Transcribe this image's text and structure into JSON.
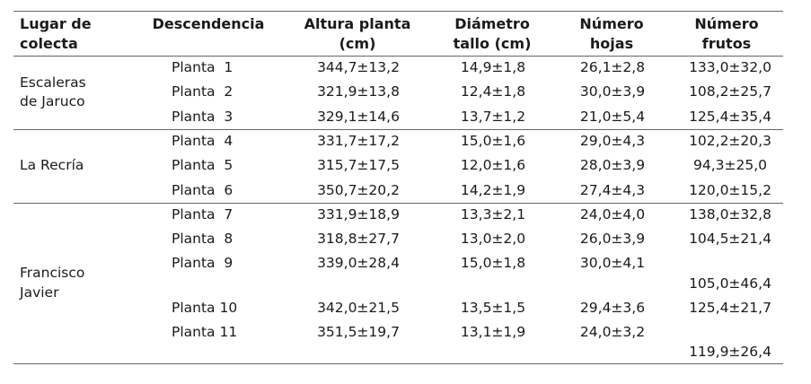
{
  "headers": {
    "lugar": [
      "Lugar de",
      "colecta"
    ],
    "descendencia": "Descendencia",
    "altura": [
      "Altura planta",
      "(cm)"
    ],
    "diametro": [
      "Diámetro",
      "tallo (cm)"
    ],
    "hojas": [
      "Número",
      "hojas"
    ],
    "frutos": [
      "Número",
      "frutos"
    ]
  },
  "groups": [
    {
      "lugar": [
        "Escaleras",
        "de Jaruco"
      ]
    },
    {
      "lugar": [
        "La Recría"
      ]
    },
    {
      "lugar": [
        "Francisco",
        "Javier"
      ]
    }
  ],
  "rows": [
    {
      "planta": "Planta  1",
      "altura": "344,7±13,2",
      "diametro": "14,9±1,8",
      "hojas": "26,1±2,8",
      "frutos": "133,0±32,0"
    },
    {
      "planta": "Planta  2",
      "altura": "321,9±13,8",
      "diametro": "12,4±1,8",
      "hojas": "30,0±3,9",
      "frutos": "108,2±25,7"
    },
    {
      "planta": "Planta  3",
      "altura": "329,1±14,6",
      "diametro": "13,7±1,2",
      "hojas": "21,0±5,4",
      "frutos": "125,4±35,4"
    },
    {
      "planta": "Planta  4",
      "altura": "331,7±17,2",
      "diametro": "15,0±1,6",
      "hojas": "29,0±4,3",
      "frutos": "102,2±20,3"
    },
    {
      "planta": "Planta  5",
      "altura": "315,7±17,5",
      "diametro": "12,0±1,6",
      "hojas": "28,0±3,9",
      "frutos": "94,3±25,0"
    },
    {
      "planta": "Planta  6",
      "altura": "350,7±20,2",
      "diametro": "14,2±1,9",
      "hojas": "27,4±4,3",
      "frutos": "120,0±15,2"
    },
    {
      "planta": "Planta  7",
      "altura": "331,9±18,9",
      "diametro": "13,3±2,1",
      "hojas": "24,0±4,0",
      "frutos": "138,0±32,8"
    },
    {
      "planta": "Planta  8",
      "altura": "318,8±27,7",
      "diametro": "13,0±2,0",
      "hojas": "26,0±3,9",
      "frutos": "104,5±21,4"
    },
    {
      "planta": "Planta  9",
      "altura": "339,0±28,4",
      "diametro": "15,0±1,8",
      "hojas": "30,0±4,1",
      "frutos": "105,0±46,4"
    },
    {
      "planta": "Planta 10",
      "altura": "342,0±21,5",
      "diametro": "13,5±1,5",
      "hojas": "29,4±3,6",
      "frutos": "125,4±21,7"
    },
    {
      "planta": "Planta 11",
      "altura": "351,5±19,7",
      "diametro": "13,1±1,9",
      "hojas": "24,0±3,2",
      "frutos": "119,9±26,4"
    }
  ]
}
